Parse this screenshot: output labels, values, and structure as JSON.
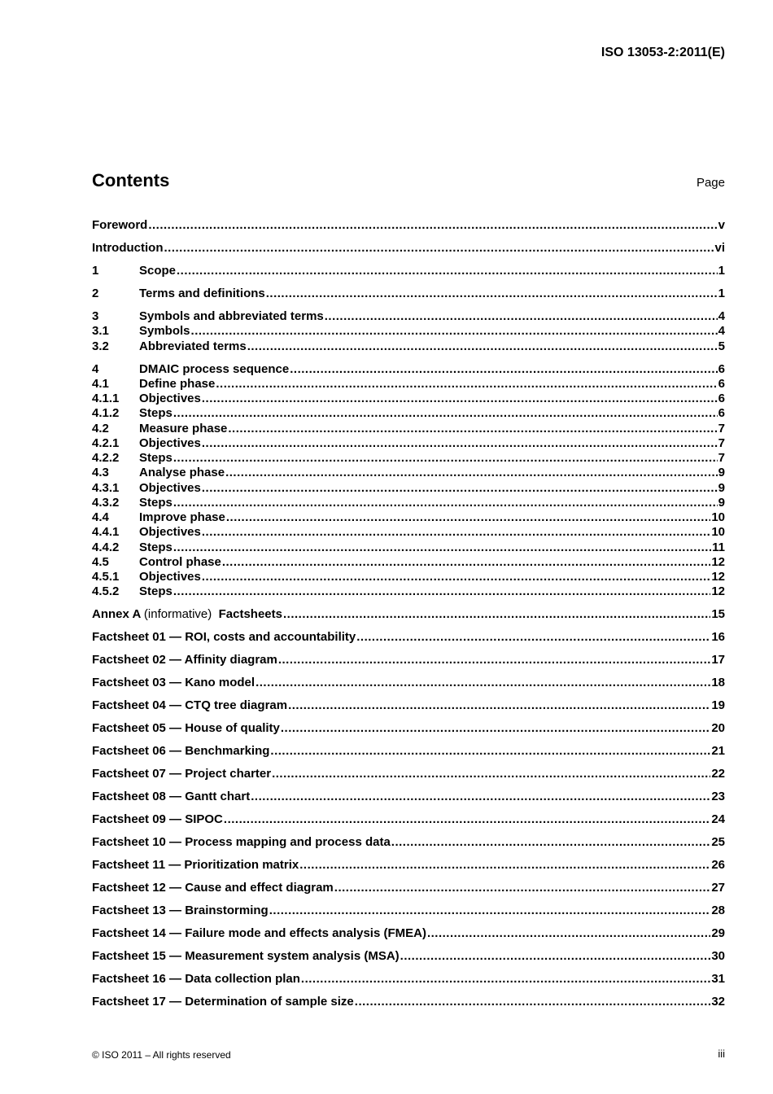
{
  "header": {
    "doc_id": "ISO 13053-2:2011(E)"
  },
  "contents": {
    "title": "Contents",
    "page_label": "Page"
  },
  "toc_groups": [
    [
      {
        "num": "",
        "title": "Foreword",
        "page": "v"
      }
    ],
    [
      {
        "num": "",
        "title": "Introduction",
        "page": "vi"
      }
    ],
    [
      {
        "num": "1",
        "title": "Scope",
        "page": "1"
      }
    ],
    [
      {
        "num": "2",
        "title": "Terms and definitions",
        "page": "1"
      }
    ],
    [
      {
        "num": "3",
        "title": "Symbols and abbreviated terms",
        "page": "4"
      },
      {
        "num": "3.1",
        "title": "Symbols",
        "page": "4"
      },
      {
        "num": "3.2",
        "title": "Abbreviated terms",
        "page": "5"
      }
    ],
    [
      {
        "num": "4",
        "title": "DMAIC process sequence",
        "page": "6"
      },
      {
        "num": "4.1",
        "title": "Define phase",
        "page": "6"
      },
      {
        "num": "4.1.1",
        "title": "Objectives",
        "page": "6"
      },
      {
        "num": "4.1.2",
        "title": "Steps",
        "page": "6"
      },
      {
        "num": "4.2",
        "title": "Measure phase",
        "page": "7"
      },
      {
        "num": "4.2.1",
        "title": "Objectives",
        "page": "7"
      },
      {
        "num": "4.2.2",
        "title": "Steps",
        "page": "7"
      },
      {
        "num": "4.3",
        "title": "Analyse phase",
        "page": "9"
      },
      {
        "num": "4.3.1",
        "title": "Objectives",
        "page": "9"
      },
      {
        "num": "4.3.2",
        "title": "Steps",
        "page": "9"
      },
      {
        "num": "4.4",
        "title": "Improve phase",
        "page": "10"
      },
      {
        "num": "4.4.1",
        "title": "Objectives",
        "page": "10"
      },
      {
        "num": "4.4.2",
        "title": "Steps",
        "page": "11"
      },
      {
        "num": "4.5",
        "title": "Control phase",
        "page": "12"
      },
      {
        "num": "4.5.1",
        "title": "Objectives",
        "page": "12"
      },
      {
        "num": "4.5.2",
        "title": "Steps",
        "page": "12"
      }
    ],
    [
      {
        "num": "",
        "title": "Annex A",
        "note": "(informative)",
        "title2": "Factsheets",
        "page": "15"
      }
    ],
    [
      {
        "num": "",
        "title": "Factsheet 01 — ROI, costs and accountability",
        "page": "16"
      }
    ],
    [
      {
        "num": "",
        "title": "Factsheet 02 — Affinity diagram",
        "page": "17"
      }
    ],
    [
      {
        "num": "",
        "title": "Factsheet 03 — Kano model",
        "page": "18"
      }
    ],
    [
      {
        "num": "",
        "title": "Factsheet 04 — CTQ tree diagram",
        "page": "19"
      }
    ],
    [
      {
        "num": "",
        "title": "Factsheet 05 — House of quality",
        "page": "20"
      }
    ],
    [
      {
        "num": "",
        "title": "Factsheet 06 — Benchmarking",
        "page": "21"
      }
    ],
    [
      {
        "num": "",
        "title": "Factsheet 07 — Project charter",
        "page": "22"
      }
    ],
    [
      {
        "num": "",
        "title": "Factsheet 08 — Gantt chart",
        "page": "23"
      }
    ],
    [
      {
        "num": "",
        "title": "Factsheet 09 — SIPOC",
        "page": "24"
      }
    ],
    [
      {
        "num": "",
        "title": "Factsheet 10 — Process mapping and process data",
        "page": "25"
      }
    ],
    [
      {
        "num": "",
        "title": "Factsheet 11 — Prioritization matrix",
        "page": "26"
      }
    ],
    [
      {
        "num": "",
        "title": "Factsheet 12 — Cause and effect diagram",
        "page": "27"
      }
    ],
    [
      {
        "num": "",
        "title": "Factsheet 13 — Brainstorming",
        "page": "28"
      }
    ],
    [
      {
        "num": "",
        "title": "Factsheet 14 — Failure mode and effects analysis (FMEA)",
        "page": "29"
      }
    ],
    [
      {
        "num": "",
        "title": "Factsheet 15 — Measurement system analysis (MSA)",
        "page": "30"
      }
    ],
    [
      {
        "num": "",
        "title": "Factsheet 16 — Data collection plan",
        "page": "31"
      }
    ],
    [
      {
        "num": "",
        "title": "Factsheet 17 — Determination of sample size",
        "page": "32"
      }
    ]
  ],
  "footer": {
    "copyright": "© ISO 2011 – All rights reserved",
    "page_number": "iii"
  }
}
